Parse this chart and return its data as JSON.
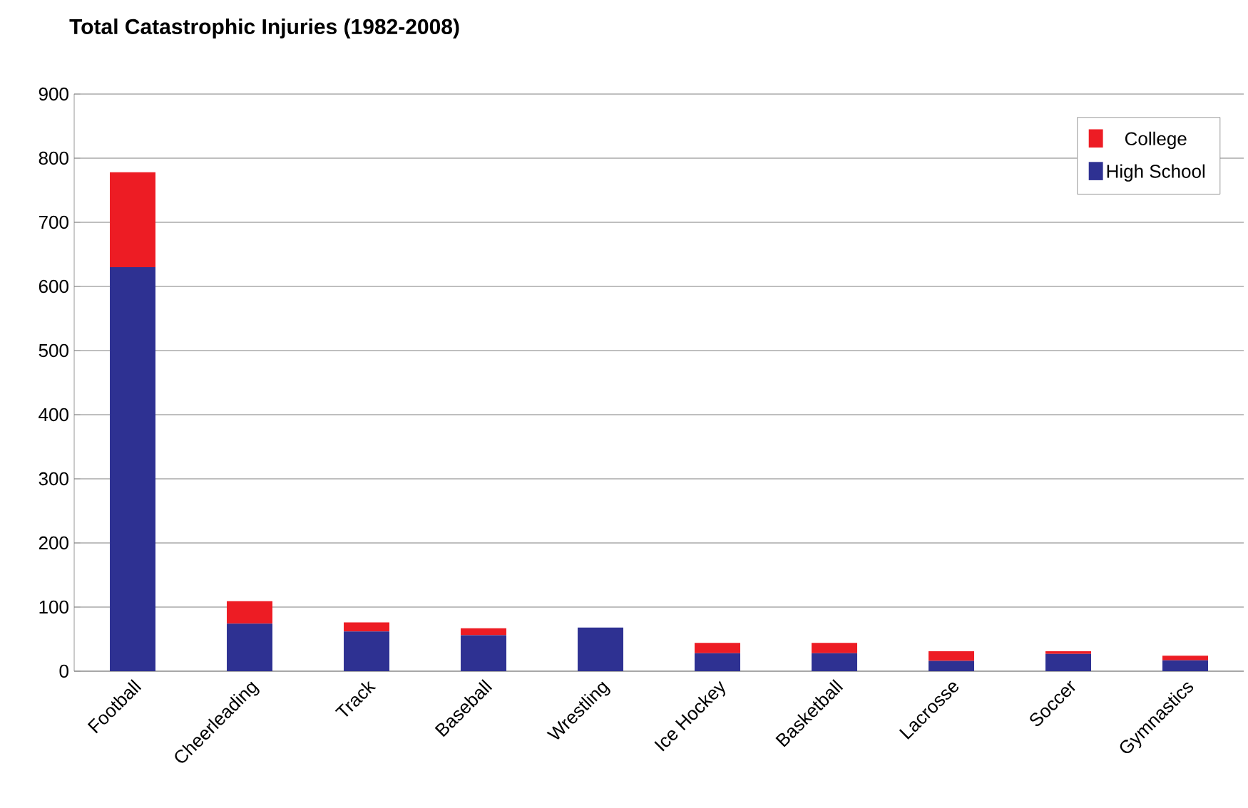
{
  "chart_data": {
    "type": "bar",
    "title": "Total Catastrophic Injuries (1982-2008)",
    "stacked": true,
    "categories": [
      "Football",
      "Cheerleading",
      "Track",
      "Baseball",
      "Wrestling",
      "Ice Hockey",
      "Basketball",
      "Lacrosse",
      "Soccer",
      "Gymnastics"
    ],
    "series": [
      {
        "name": "High School",
        "color": "#2e3192",
        "values": [
          630,
          74,
          62,
          56,
          68,
          28,
          28,
          16,
          27,
          17
        ]
      },
      {
        "name": "College",
        "color": "#ed1c24",
        "values": [
          148,
          35,
          14,
          11,
          0,
          16,
          16,
          15,
          4,
          7
        ]
      }
    ],
    "ylim": [
      0,
      900
    ],
    "yticks": [
      0,
      100,
      200,
      300,
      400,
      500,
      600,
      700,
      800,
      900
    ],
    "grid": "y",
    "legend": "top right"
  }
}
